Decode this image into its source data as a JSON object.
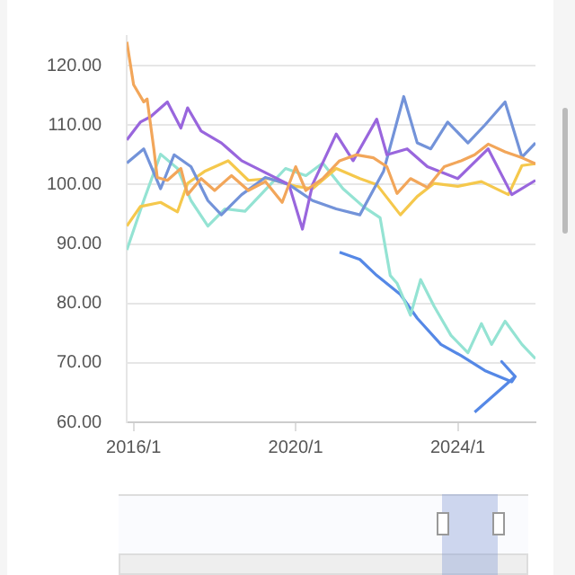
{
  "chart_data": {
    "type": "line",
    "marker": "none",
    "grid": "y",
    "xlim": [
      "2015-11",
      "2025-12"
    ],
    "ylim": [
      60,
      125
    ],
    "xticks": [
      {
        "value": "2016-01",
        "label": "2016/1"
      },
      {
        "value": "2020-01",
        "label": "2020/1"
      },
      {
        "value": "2024-01",
        "label": "2024/1"
      }
    ],
    "yticks": [
      {
        "value": 60,
        "label": "60.00"
      },
      {
        "value": 70,
        "label": "70.00"
      },
      {
        "value": 80,
        "label": "80.00"
      },
      {
        "value": 90,
        "label": "90.00"
      },
      {
        "value": 100,
        "label": "100.00"
      },
      {
        "value": 110,
        "label": "110.00"
      },
      {
        "value": 120,
        "label": "120.00"
      }
    ],
    "series": [
      {
        "color": "#f2a65a",
        "x": [
          "2015-11",
          "2016-01",
          "2016-04",
          "2016-05",
          "2016-07",
          "2016-08",
          "2016-11",
          "2017-03",
          "2017-05",
          "2017-09",
          "2018-01",
          "2018-06",
          "2018-11",
          "2019-04",
          "2019-09",
          "2020-01",
          "2020-04",
          "2020-09",
          "2021-02",
          "2021-07",
          "2021-12",
          "2022-04",
          "2022-07",
          "2022-11",
          "2023-04",
          "2023-09",
          "2024-02",
          "2024-06",
          "2024-10",
          "2025-03",
          "2025-08",
          "2025-12"
        ],
        "values": [
          124,
          116.8,
          113.9,
          114.4,
          106,
          101.2,
          100.7,
          102.7,
          98.3,
          101,
          99,
          101.5,
          99,
          100.5,
          97,
          103,
          99,
          101,
          104,
          105,
          104.5,
          103,
          98.5,
          101,
          99.5,
          103,
          104,
          105,
          106.8,
          105.5,
          104.5,
          103.5
        ]
      },
      {
        "color": "#9966dd",
        "x": [
          "2015-11",
          "2016-03",
          "2016-06",
          "2016-11",
          "2017-03",
          "2017-05",
          "2017-09",
          "2018-03",
          "2018-09",
          "2019-04",
          "2019-11",
          "2020-03",
          "2020-06",
          "2021-01",
          "2021-06",
          "2022-01",
          "2022-04",
          "2022-10",
          "2023-04",
          "2024-01",
          "2024-10",
          "2025-05",
          "2025-12"
        ],
        "values": [
          107.5,
          110.5,
          111.4,
          113.9,
          109.5,
          112.9,
          109,
          107,
          104,
          102,
          100,
          92.5,
          100,
          108.5,
          104,
          111,
          105,
          106,
          103,
          101,
          106,
          98.3,
          100.7
        ]
      },
      {
        "color": "#7393d9",
        "x": [
          "2015-11",
          "2016-04",
          "2016-09",
          "2017-01",
          "2017-06",
          "2017-11",
          "2018-03",
          "2018-09",
          "2019-04",
          "2019-11",
          "2020-06",
          "2021-01",
          "2021-08",
          "2022-03",
          "2022-09",
          "2023-01",
          "2023-05",
          "2023-10",
          "2024-04",
          "2024-09",
          "2025-03",
          "2025-08",
          "2025-12"
        ],
        "values": [
          103.6,
          106,
          99.3,
          105,
          103,
          97.3,
          94.9,
          98.3,
          101.2,
          100,
          97.3,
          95.9,
          94.9,
          102.2,
          114.8,
          107,
          106,
          110.5,
          107,
          110,
          113.9,
          104.6,
          107
        ]
      },
      {
        "color": "#f5c84c",
        "x": [
          "2015-11",
          "2016-03",
          "2016-09",
          "2017-02",
          "2017-05",
          "2017-10",
          "2018-05",
          "2018-11",
          "2019-05",
          "2020-01",
          "2020-06",
          "2021-01",
          "2021-08",
          "2022-01",
          "2022-08",
          "2023-01",
          "2023-06",
          "2024-01",
          "2024-08",
          "2025-04",
          "2025-08",
          "2025-12"
        ],
        "values": [
          93,
          96.3,
          97,
          95.4,
          100.2,
          102.2,
          104,
          100.7,
          101,
          99.7,
          99.3,
          102.7,
          101,
          100,
          94.9,
          98,
          100.2,
          99.7,
          100.5,
          98.3,
          103.2,
          103.5
        ]
      },
      {
        "color": "#94e3d3",
        "x": [
          "2015-11",
          "2016-04",
          "2016-09",
          "2017-02",
          "2017-06",
          "2017-11",
          "2018-04",
          "2018-10",
          "2019-05",
          "2019-10",
          "2020-04",
          "2020-09",
          "2021-03",
          "2021-09",
          "2022-02",
          "2022-05",
          "2022-07",
          "2022-11",
          "2023-02",
          "2023-06",
          "2023-11",
          "2024-04",
          "2024-08",
          "2024-11",
          "2025-03",
          "2025-08",
          "2025-12"
        ],
        "values": [
          89,
          97.3,
          105.1,
          102.7,
          97.3,
          93,
          95.9,
          95.5,
          99.7,
          102.7,
          101.5,
          103.6,
          99.3,
          96.3,
          94.4,
          84.7,
          83.4,
          78,
          84,
          79.5,
          74.6,
          71.7,
          76.6,
          73.1,
          77,
          73.1,
          70.7
        ]
      },
      {
        "color": "#5588e6",
        "x": [
          "2021-02",
          "2021-08",
          "2022-01",
          "2022-08",
          "2023-01",
          "2023-08",
          "2024-02",
          "2024-09",
          "2025-05",
          "2025-06",
          "2025-02",
          "2025-06",
          "2024-06"
        ],
        "values": [
          88.6,
          87.4,
          84.7,
          81.5,
          77.5,
          73.1,
          71.2,
          68.7,
          66.8,
          67.7,
          70.2,
          67.7,
          61.7
        ]
      }
    ]
  }
}
